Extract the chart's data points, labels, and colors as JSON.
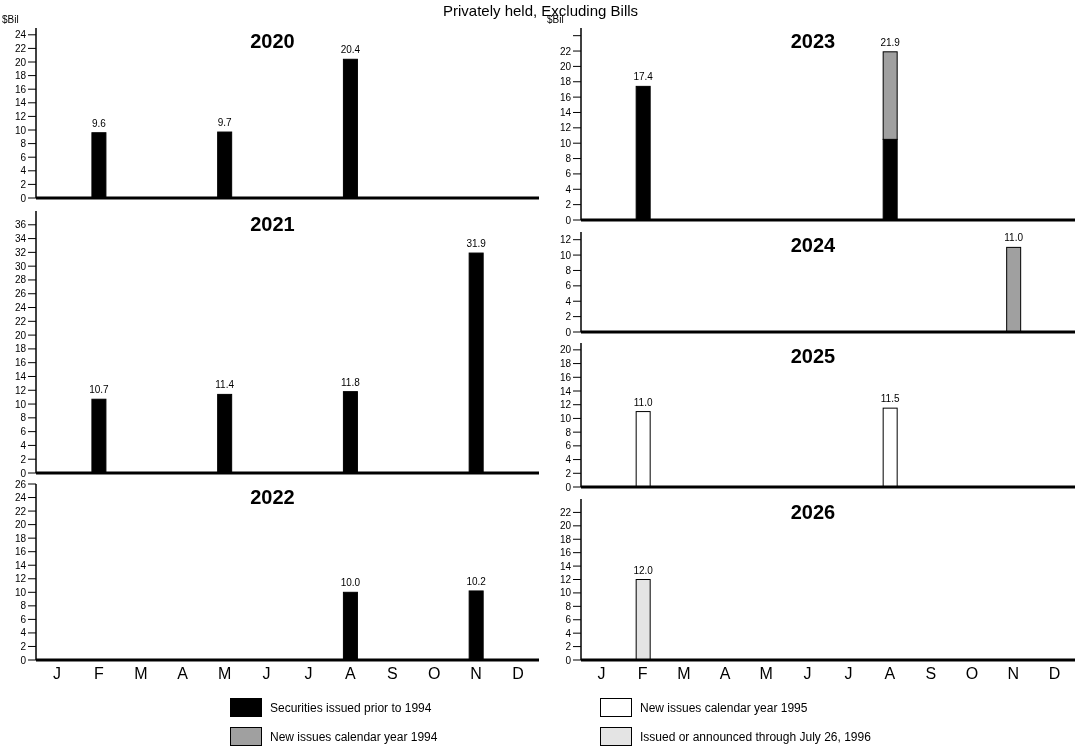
{
  "chart_data": [
    {
      "type": "bar",
      "subtitle": "Privately held, Excluding Bills",
      "title": "2020",
      "ylabel": "$Bil",
      "stacked": true,
      "tick_labels": "y",
      "legend": "bottom",
      "categories": [
        "J",
        "F",
        "M",
        "A",
        "M",
        "J",
        "J",
        "A",
        "S",
        "O",
        "N",
        "D"
      ],
      "ylim": [
        0,
        25
      ],
      "yticks": [
        0,
        2,
        4,
        6,
        8,
        10,
        12,
        14,
        16,
        18,
        20,
        22,
        24
      ],
      "series": [
        {
          "name": "Securities issued prior to 1994",
          "color": "#000000",
          "values": [
            null,
            9.6,
            null,
            null,
            9.7,
            null,
            null,
            20.4,
            null,
            null,
            null,
            null
          ]
        }
      ],
      "totals": [
        null,
        "9.6",
        null,
        null,
        "9.7",
        null,
        null,
        "20.4",
        null,
        null,
        null,
        null
      ]
    },
    {
      "type": "bar",
      "title": "2021",
      "stacked": true,
      "tick_labels": "y",
      "legend": "bottom",
      "categories": [
        "J",
        "F",
        "M",
        "A",
        "M",
        "J",
        "J",
        "A",
        "S",
        "O",
        "N",
        "D"
      ],
      "ylim": [
        0,
        38
      ],
      "yticks": [
        0,
        2,
        4,
        6,
        8,
        10,
        12,
        14,
        16,
        18,
        20,
        22,
        24,
        26,
        28,
        30,
        32,
        34,
        36
      ],
      "series": [
        {
          "name": "Securities issued prior to 1994",
          "color": "#000000",
          "values": [
            null,
            10.7,
            null,
            null,
            11.4,
            null,
            null,
            11.8,
            null,
            null,
            31.9,
            null
          ]
        }
      ],
      "totals": [
        null,
        "10.7",
        null,
        null,
        "11.4",
        null,
        null,
        "11.8",
        null,
        null,
        "31.9",
        null
      ]
    },
    {
      "type": "bar",
      "title": "2022",
      "stacked": true,
      "legend": "bottom",
      "categories": [
        "J",
        "F",
        "M",
        "A",
        "M",
        "J",
        "J",
        "A",
        "S",
        "O",
        "N",
        "D"
      ],
      "ylim": [
        0,
        26
      ],
      "yticks": [
        0,
        2,
        4,
        6,
        8,
        10,
        12,
        14,
        16,
        18,
        20,
        22,
        24,
        26
      ],
      "series": [
        {
          "name": "Securities issued prior to 1994",
          "color": "#000000",
          "values": [
            null,
            null,
            null,
            null,
            null,
            null,
            null,
            10.0,
            null,
            null,
            10.2,
            null
          ]
        }
      ],
      "totals": [
        null,
        null,
        null,
        null,
        null,
        null,
        null,
        "10.0",
        null,
        null,
        "10.2",
        null
      ]
    },
    {
      "type": "bar",
      "title": "2023",
      "ylabel": "$Bil",
      "stacked": true,
      "tick_labels": "y",
      "legend": "bottom",
      "categories": [
        "J",
        "F",
        "M",
        "A",
        "M",
        "J",
        "J",
        "A",
        "S",
        "O",
        "N",
        "D"
      ],
      "ylim": [
        0,
        25
      ],
      "yticks": [
        0,
        2,
        4,
        6,
        8,
        10,
        12,
        14,
        16,
        18,
        20,
        22,
        {
          "value": 24,
          "label": null
        }
      ],
      "series": [
        {
          "name": "Securities issued prior to 1994",
          "color": "#000000",
          "values": [
            null,
            17.4,
            null,
            null,
            null,
            null,
            null,
            10.5,
            null,
            null,
            null,
            null
          ]
        },
        {
          "name": "New issues calendar year 1994",
          "color": "#a0a0a0",
          "values": [
            null,
            null,
            null,
            null,
            null,
            null,
            null,
            11.4,
            null,
            null,
            null,
            null
          ]
        }
      ],
      "totals": [
        null,
        "17.4",
        null,
        null,
        null,
        null,
        null,
        "21.9",
        null,
        null,
        null,
        null
      ]
    },
    {
      "type": "bar",
      "title": "2024",
      "stacked": true,
      "tick_labels": "y",
      "legend": "bottom",
      "categories": [
        "J",
        "F",
        "M",
        "A",
        "M",
        "J",
        "J",
        "A",
        "S",
        "O",
        "N",
        "D"
      ],
      "ylim": [
        0,
        13
      ],
      "yticks": [
        0,
        2,
        4,
        6,
        8,
        10,
        12
      ],
      "series": [
        {
          "name": "New issues calendar year 1994",
          "color": "#a0a0a0",
          "values": [
            null,
            null,
            null,
            null,
            null,
            null,
            null,
            null,
            null,
            null,
            11.0,
            null
          ]
        }
      ],
      "totals": [
        null,
        null,
        null,
        null,
        null,
        null,
        null,
        null,
        null,
        null,
        "11.0",
        null
      ]
    },
    {
      "type": "bar",
      "title": "2025",
      "stacked": true,
      "tick_labels": "y",
      "legend": "bottom",
      "categories": [
        "J",
        "F",
        "M",
        "A",
        "M",
        "J",
        "J",
        "A",
        "S",
        "O",
        "N",
        "D"
      ],
      "ylim": [
        0,
        21
      ],
      "yticks": [
        0,
        2,
        4,
        6,
        8,
        10,
        12,
        14,
        16,
        18,
        20
      ],
      "series": [
        {
          "name": "New issues calendar year 1995",
          "color": "#ffffff",
          "values": [
            null,
            11.0,
            null,
            null,
            null,
            null,
            null,
            11.5,
            null,
            null,
            null,
            null
          ]
        }
      ],
      "totals": [
        null,
        "11.0",
        null,
        null,
        null,
        null,
        null,
        "11.5",
        null,
        null,
        null,
        null
      ]
    },
    {
      "type": "bar",
      "title": "2026",
      "stacked": true,
      "legend": "bottom",
      "categories": [
        "J",
        "F",
        "M",
        "A",
        "M",
        "J",
        "J",
        "A",
        "S",
        "O",
        "N",
        "D"
      ],
      "ylim": [
        0,
        24
      ],
      "yticks": [
        0,
        2,
        4,
        6,
        8,
        10,
        12,
        14,
        16,
        18,
        20,
        22
      ],
      "series": [
        {
          "name": "Issued or announced through July 26, 1996",
          "color": "#e4e4e4",
          "values": [
            null,
            12.0,
            null,
            null,
            null,
            null,
            null,
            null,
            null,
            null,
            null,
            null
          ]
        }
      ],
      "totals": [
        null,
        "12.0",
        null,
        null,
        null,
        null,
        null,
        null,
        null,
        null,
        null,
        null
      ]
    }
  ]
}
